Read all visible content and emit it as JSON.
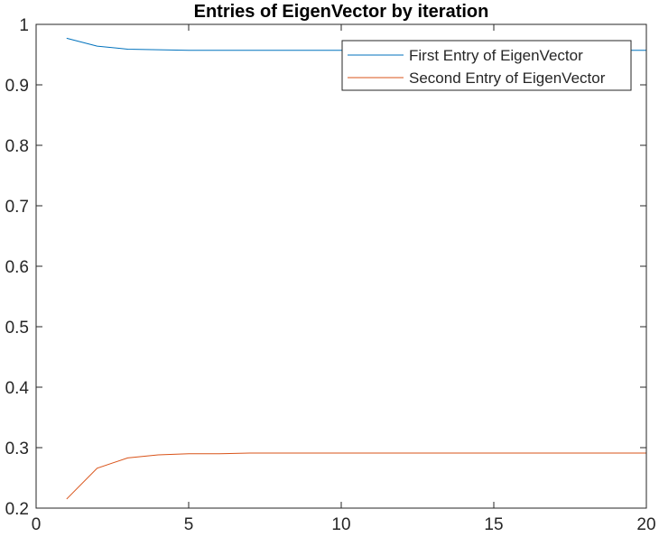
{
  "chart_data": {
    "type": "line",
    "title": "Entries of EigenVector by iteration",
    "xlabel": "",
    "ylabel": "",
    "xlim": [
      0,
      20
    ],
    "ylim": [
      0.2,
      1
    ],
    "xticks": [
      "0",
      "5",
      "10",
      "15",
      "20"
    ],
    "yticks": [
      "0.2",
      "0.3",
      "0.4",
      "0.5",
      "0.6",
      "0.7",
      "0.8",
      "0.9",
      "1"
    ],
    "grid": false,
    "legend_position": "top-right",
    "x": [
      1,
      2,
      3,
      4,
      5,
      6,
      7,
      8,
      9,
      10,
      11,
      12,
      13,
      14,
      15,
      16,
      17,
      18,
      19,
      20
    ],
    "series": [
      {
        "name": "First Entry of EigenVector",
        "color": "#0072BD",
        "values": [
          0.977,
          0.964,
          0.959,
          0.958,
          0.957,
          0.957,
          0.957,
          0.957,
          0.957,
          0.957,
          0.957,
          0.957,
          0.957,
          0.957,
          0.957,
          0.957,
          0.957,
          0.957,
          0.957,
          0.957
        ]
      },
      {
        "name": "Second Entry of EigenVector",
        "color": "#D95319",
        "values": [
          0.215,
          0.266,
          0.283,
          0.288,
          0.29,
          0.29,
          0.291,
          0.291,
          0.291,
          0.291,
          0.291,
          0.291,
          0.291,
          0.291,
          0.291,
          0.291,
          0.291,
          0.291,
          0.291,
          0.291
        ]
      }
    ]
  }
}
